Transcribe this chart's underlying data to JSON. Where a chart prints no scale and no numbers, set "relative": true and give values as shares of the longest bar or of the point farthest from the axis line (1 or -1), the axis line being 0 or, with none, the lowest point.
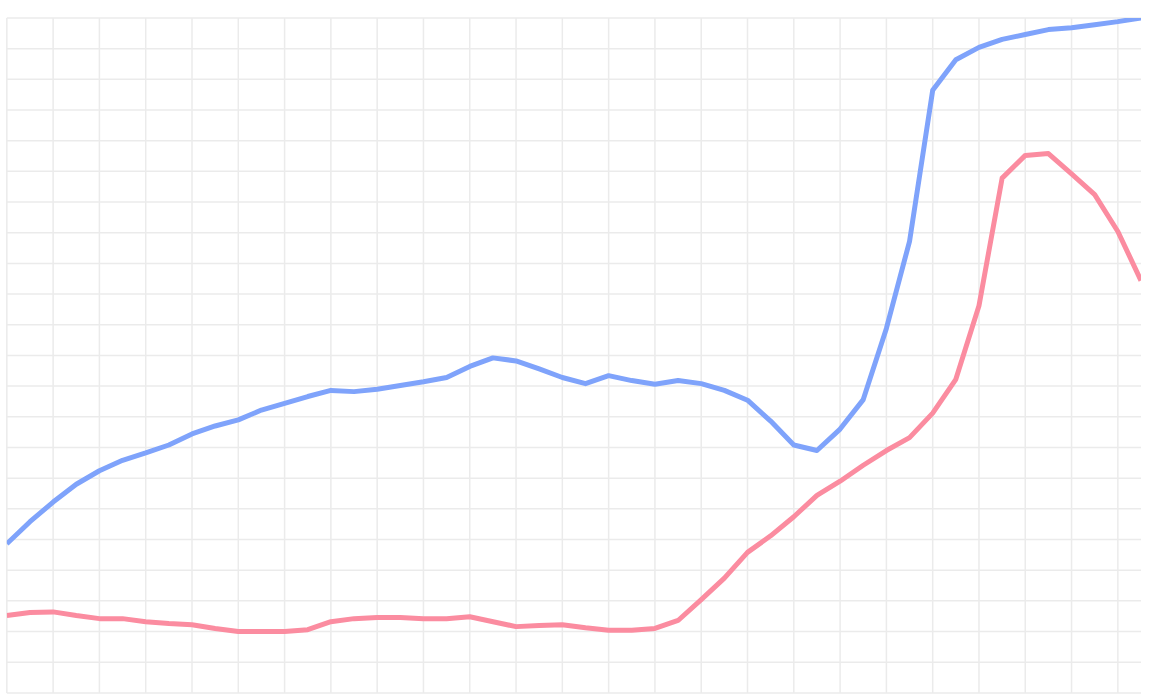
{
  "chart_data": {
    "type": "line",
    "relative": true,
    "grid": true,
    "categories": [
      null,
      null,
      null,
      null,
      null,
      null,
      null,
      null,
      null,
      null,
      null,
      null,
      null,
      null,
      null,
      null,
      null,
      null,
      null,
      null,
      null,
      null,
      null,
      null,
      null,
      null,
      null,
      null,
      null,
      null,
      null,
      null,
      null,
      null,
      null,
      null,
      null,
      null,
      null,
      null,
      null,
      null,
      null,
      null,
      null,
      null,
      null,
      null,
      null,
      null
    ],
    "series": [
      {
        "color": "#7fa3fb",
        "values": [
          0.143,
          0.179,
          0.211,
          0.24,
          0.262,
          0.279,
          0.291,
          0.304,
          0.322,
          0.335,
          0.345,
          0.361,
          0.372,
          0.383,
          0.393,
          0.391,
          0.395,
          0.401,
          0.407,
          0.414,
          0.432,
          0.446,
          0.441,
          0.428,
          0.414,
          0.404,
          0.417,
          0.409,
          0.403,
          0.409,
          0.404,
          0.393,
          0.377,
          0.343,
          0.304,
          0.295,
          0.33,
          0.378,
          0.494,
          0.636,
          0.882,
          0.932,
          0.952,
          0.965,
          0.973,
          0.981,
          0.984,
          0.989,
          0.994,
          1
        ]
      },
      {
        "color": "#fb8ca0",
        "values": [
          0.026,
          0.031,
          0.032,
          0.026,
          0.021,
          0.021,
          0.016,
          0.013,
          0.011,
          0.005,
          0,
          0,
          0,
          0.003,
          0.016,
          0.021,
          0.023,
          0.023,
          0.021,
          0.021,
          0.024,
          0.016,
          0.008,
          0.01,
          0.011,
          0.006,
          0.002,
          0.002,
          0.005,
          0.018,
          0.052,
          0.087,
          0.129,
          0.156,
          0.187,
          0.222,
          0.245,
          0.271,
          0.295,
          0.316,
          0.356,
          0.411,
          0.531,
          0.739,
          0.776,
          0.779,
          0.746,
          0.712,
          0.652,
          0.572
        ]
      }
    ]
  }
}
